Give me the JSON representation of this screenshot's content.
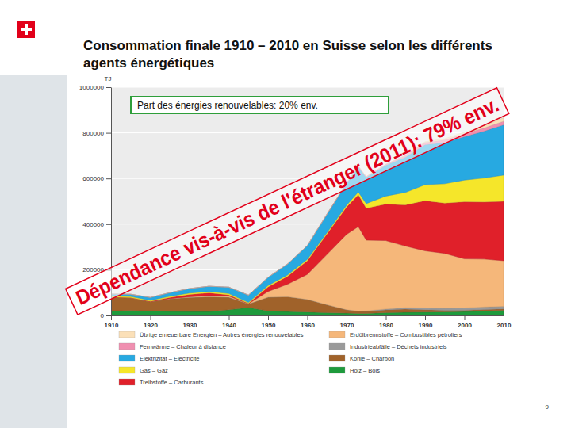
{
  "chart_data": {
    "type": "area",
    "title": "Consommation finale 1910 – 2010 en Suisse selon les différents agents énergétiques",
    "y_label": "TJ",
    "annotations": [
      "Part des énergies renouvelables: 20% env.",
      "Dépendance vis-à-vis de l'étranger (2011): 79% env."
    ],
    "page_number": "9",
    "x": [
      1910,
      1915,
      1920,
      1925,
      1930,
      1935,
      1940,
      1945,
      1950,
      1955,
      1960,
      1965,
      1970,
      1973,
      1975,
      1980,
      1985,
      1990,
      1995,
      2000,
      2005,
      2010
    ],
    "series": [
      {
        "name": "Holz – Bois",
        "color": "#1e9a3c",
        "values": [
          20000,
          22000,
          20000,
          18000,
          17000,
          17000,
          25000,
          35000,
          20000,
          17000,
          15000,
          12000,
          10000,
          9000,
          9000,
          12000,
          14000,
          15000,
          16000,
          17000,
          20000,
          23000
        ]
      },
      {
        "name": "Kohle – Charbon",
        "color": "#a0622a",
        "values": [
          60000,
          55000,
          40000,
          55000,
          62000,
          65000,
          55000,
          15000,
          60000,
          65000,
          55000,
          35000,
          15000,
          10000,
          9000,
          12000,
          14000,
          10000,
          7000,
          6000,
          6000,
          6000
        ]
      },
      {
        "name": "Industrieabfälle – Déchets industriels",
        "color": "#9a9a9a",
        "values": [
          0,
          0,
          0,
          0,
          0,
          0,
          0,
          0,
          0,
          0,
          0,
          0,
          0,
          0,
          2000,
          4000,
          6000,
          8000,
          9000,
          10000,
          11000,
          11000
        ]
      },
      {
        "name": "Erdölbrennstoffe – Combustibles pétroliers",
        "color": "#f5b77a",
        "values": [
          0,
          0,
          0,
          1000,
          3000,
          5000,
          5000,
          1000,
          25000,
          55000,
          110000,
          220000,
          330000,
          370000,
          310000,
          300000,
          270000,
          250000,
          240000,
          215000,
          210000,
          200000
        ]
      },
      {
        "name": "Treibstoffe – Carburants",
        "color": "#e0202a",
        "values": [
          1000,
          1000,
          2000,
          5000,
          10000,
          12000,
          5000,
          2000,
          20000,
          35000,
          60000,
          90000,
          120000,
          140000,
          140000,
          160000,
          180000,
          220000,
          220000,
          250000,
          250000,
          260000
        ]
      },
      {
        "name": "Gas – Gaz",
        "color": "#f5e62a",
        "values": [
          5000,
          5000,
          4000,
          5000,
          6000,
          6000,
          6000,
          4000,
          6000,
          6000,
          6000,
          6000,
          8000,
          12000,
          20000,
          35000,
          55000,
          70000,
          85000,
          95000,
          105000,
          115000
        ]
      },
      {
        "name": "Elektrizität – Electricité",
        "color": "#27a9e1",
        "values": [
          8000,
          10000,
          13000,
          16000,
          20000,
          23000,
          28000,
          32000,
          36000,
          48000,
          60000,
          80000,
          95000,
          110000,
          115000,
          135000,
          155000,
          175000,
          180000,
          190000,
          205000,
          220000
        ]
      },
      {
        "name": "Fernwärme – Chaleur à distance",
        "color": "#f08fb0",
        "values": [
          0,
          0,
          0,
          0,
          0,
          0,
          0,
          0,
          0,
          0,
          0,
          1000,
          2000,
          3000,
          3000,
          4000,
          7000,
          10000,
          12000,
          13000,
          14000,
          16000
        ]
      },
      {
        "name": "Übrige erneuerbare Energien – Autres énergies renouvelables",
        "color": "#fbe0b8",
        "values": [
          0,
          0,
          0,
          0,
          0,
          0,
          0,
          0,
          0,
          0,
          0,
          0,
          0,
          0,
          0,
          0,
          1000,
          3000,
          5000,
          7000,
          10000,
          15000
        ]
      }
    ],
    "xlim": [
      1910,
      2010
    ],
    "ylim": [
      0,
      1000000
    ],
    "xticks": [
      1910,
      1920,
      1930,
      1940,
      1950,
      1960,
      1970,
      1980,
      1990,
      2000,
      2010
    ],
    "yticks": [
      0,
      200000,
      400000,
      600000,
      800000,
      1000000
    ],
    "stacked": true,
    "grid": true,
    "legend": "bottom"
  }
}
